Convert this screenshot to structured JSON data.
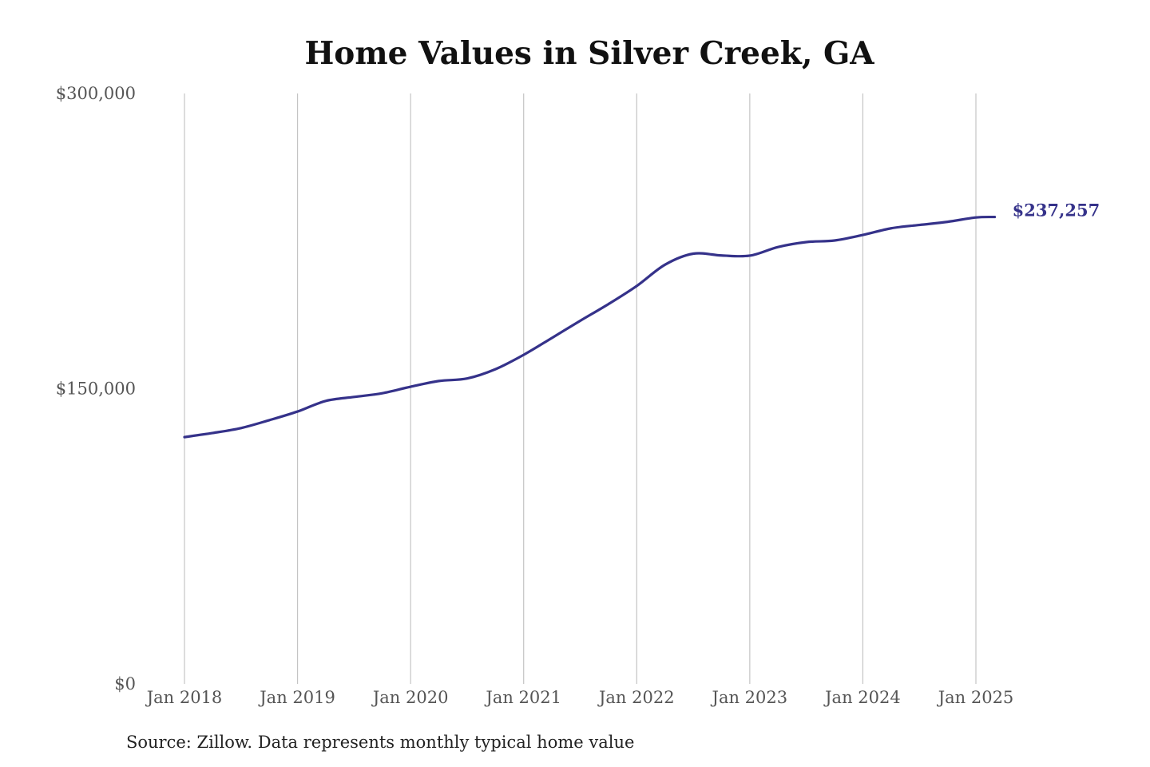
{
  "chart_data": {
    "type": "line",
    "title": "Home Values in Silver Creek, GA",
    "source": "Source: Zillow. Data represents monthly typical home value",
    "xlabel": "",
    "ylabel": "",
    "ylim": [
      0,
      300000
    ],
    "y_ticks": [
      0,
      150000,
      300000
    ],
    "y_tick_labels": [
      "$0",
      "$150,000",
      "$300,000"
    ],
    "x_ticks_month_index": [
      0,
      12,
      24,
      36,
      48,
      60,
      72,
      84
    ],
    "x_tick_labels": [
      "Jan 2018",
      "Jan 2019",
      "Jan 2020",
      "Jan 2021",
      "Jan 2022",
      "Jan 2023",
      "Jan 2024",
      "Jan 2025"
    ],
    "grid": "vertical",
    "line_color": "#35328a",
    "end_label": "$237,257",
    "series": [
      {
        "name": "Typical home value",
        "x_month_index": [
          0,
          3,
          6,
          9,
          12,
          15,
          18,
          21,
          24,
          27,
          30,
          33,
          36,
          39,
          42,
          45,
          48,
          51,
          54,
          57,
          60,
          63,
          66,
          69,
          72,
          75,
          78,
          81,
          84,
          86
        ],
        "values": [
          125400,
          127500,
          130000,
          134000,
          138400,
          143800,
          145800,
          147700,
          151000,
          153900,
          155200,
          159900,
          167200,
          175800,
          184500,
          193000,
          202200,
          213000,
          218600,
          217700,
          217600,
          222000,
          224500,
          225300,
          228100,
          231500,
          233200,
          234800,
          237000,
          237257
        ]
      }
    ]
  }
}
